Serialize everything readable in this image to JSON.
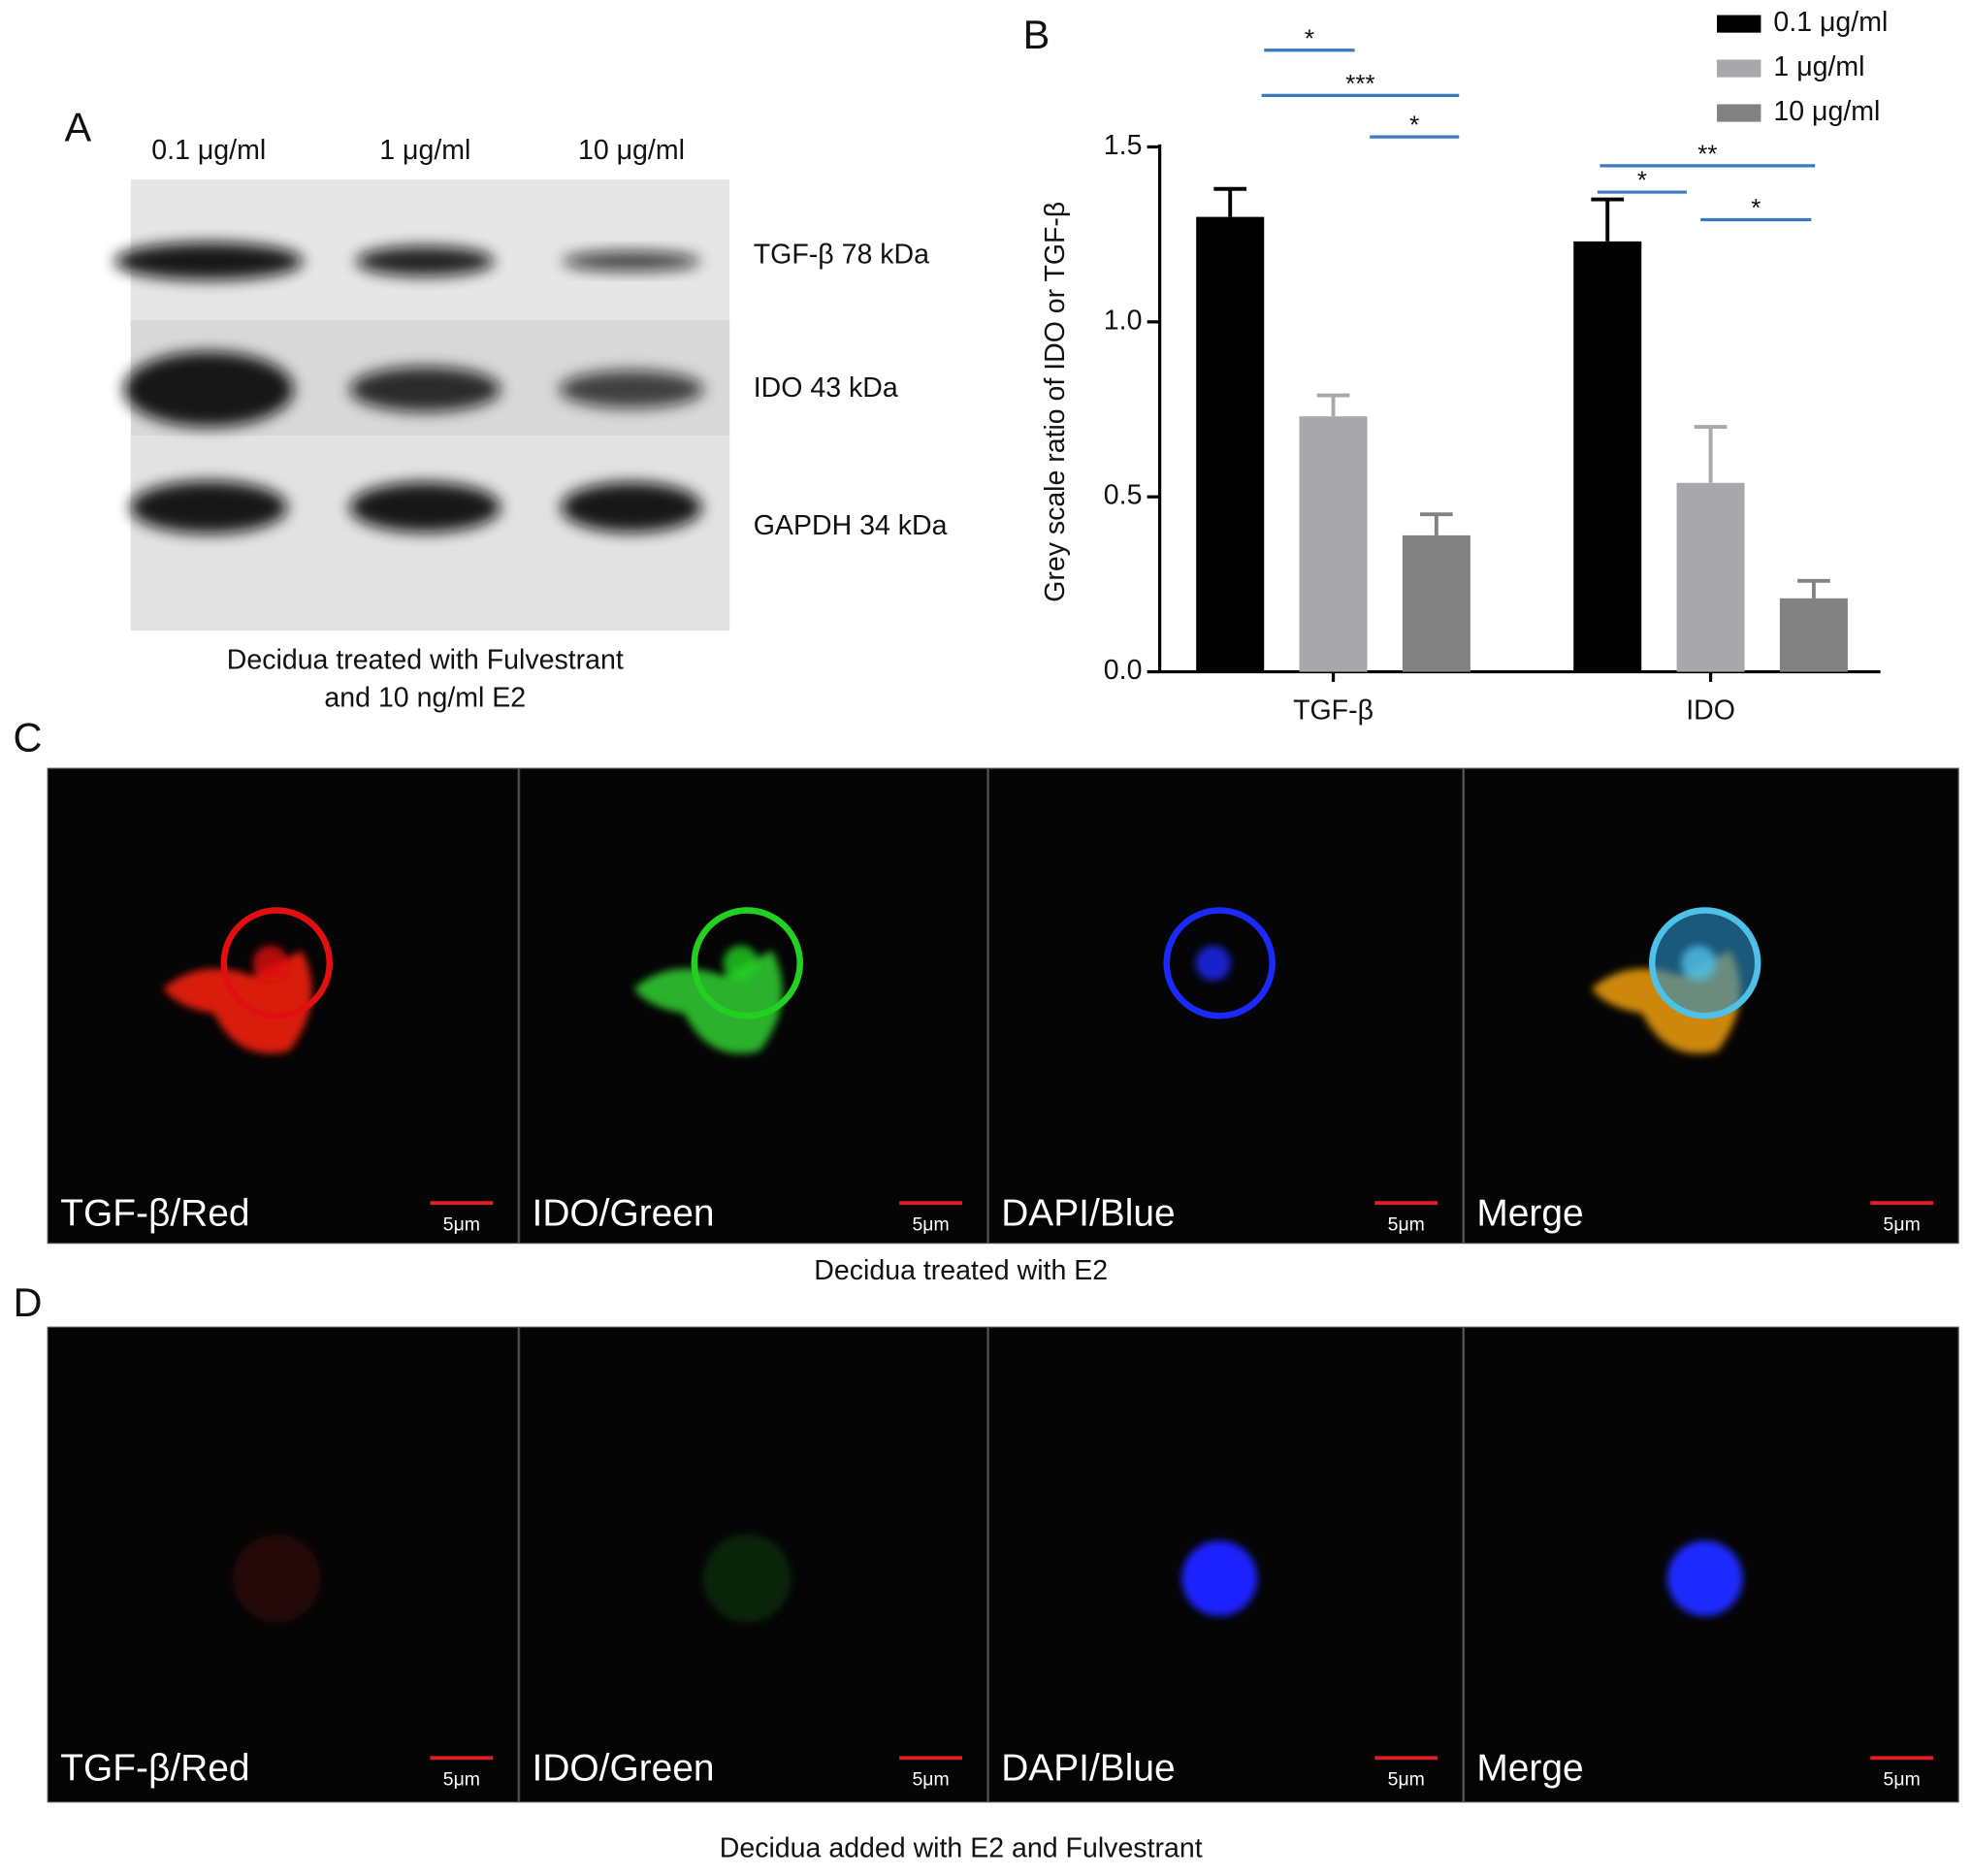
{
  "panel_a": {
    "letter": "A",
    "lanes": [
      "0.1 μg/ml",
      "1 μg/ml",
      "10 μg/ml"
    ],
    "bands": [
      "TGF-β 78 kDa",
      "IDO 43 kDa",
      "GAPDH 34 kDa"
    ],
    "caption": [
      "Decidua treated with Fulvestrant",
      "and 10 ng/ml E2"
    ]
  },
  "chart_data": {
    "type": "bar",
    "panel": "B",
    "y_label": "Grey scale ratio of IDO or TGF-β",
    "categories": [
      "TGF-β",
      "IDO"
    ],
    "series": [
      {
        "name": "0.1 μg/ml",
        "color": "#000000",
        "values": [
          1.3,
          1.23
        ],
        "errors": [
          0.08,
          0.12
        ]
      },
      {
        "name": "1 μg/ml",
        "color": "#a7a7ac",
        "values": [
          0.73,
          0.54
        ],
        "errors": [
          0.06,
          0.16
        ]
      },
      {
        "name": "10 μg/ml",
        "color": "#828282",
        "values": [
          0.39,
          0.21
        ],
        "errors": [
          0.06,
          0.05
        ]
      }
    ],
    "ylim": [
      0,
      1.5
    ],
    "yticks": [
      {
        "value": 0,
        "label": "0.0"
      },
      0.5,
      {
        "value": 1,
        "label": "1.0"
      },
      1.5
    ],
    "annotations": [
      "*",
      "***",
      "*",
      "**",
      "*",
      "*"
    ],
    "legend": "top-right"
  },
  "panel_c": {
    "letter": "C",
    "images": [
      {
        "label": "TGF-β/Red",
        "scale": "5μm"
      },
      {
        "label": "IDO/Green",
        "scale": "5μm"
      },
      {
        "label": "DAPI/Blue",
        "scale": "5μm"
      },
      {
        "label": "Merge",
        "scale": "5μm"
      }
    ],
    "caption": "Decidua treated with E2"
  },
  "panel_d": {
    "letter": "D",
    "images": [
      {
        "label": "TGF-β/Red",
        "scale": "5μm"
      },
      {
        "label": "IDO/Green",
        "scale": "5μm"
      },
      {
        "label": "DAPI/Blue",
        "scale": "5μm"
      },
      {
        "label": "Merge",
        "scale": "5μm"
      }
    ],
    "caption": "Decidua added with E2 and Fulvestrant"
  }
}
